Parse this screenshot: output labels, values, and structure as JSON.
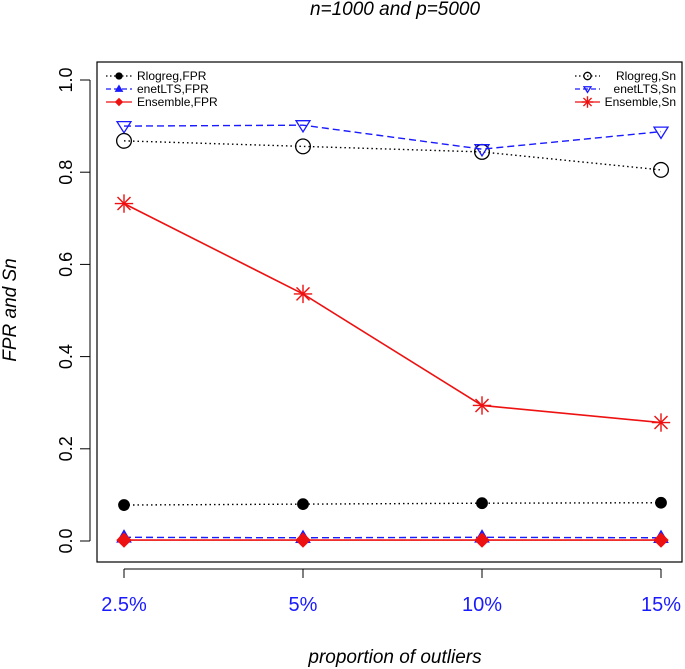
{
  "colors": {
    "black": "#000000",
    "blue": "#1a1aff",
    "red": "#ee1111",
    "xtick": "#1a1aff"
  },
  "chart_data": {
    "type": "line",
    "title": "n=1000 and p=5000",
    "xlabel": "proportion of outliers",
    "ylabel": "FPR and Sn",
    "categories": [
      "2.5%",
      "5%",
      "10%",
      "15%"
    ],
    "ylim": [
      0,
      1
    ],
    "yticks": [
      "0.0",
      "0.2",
      "0.4",
      "0.6",
      "0.8",
      "1.0"
    ],
    "grid": false,
    "series": [
      {
        "name": "Rlogreg,FPR",
        "color": "black",
        "style": "dotted",
        "marker": "filled-circle",
        "values": [
          0.078,
          0.08,
          0.082,
          0.083
        ]
      },
      {
        "name": "enetLTS,FPR",
        "color": "blue",
        "style": "dashed",
        "marker": "filled-triangle",
        "values": [
          0.008,
          0.007,
          0.008,
          0.007
        ]
      },
      {
        "name": "Ensemble,FPR",
        "color": "red",
        "style": "solid",
        "marker": "filled-diamond",
        "values": [
          0.002,
          0.002,
          0.002,
          0.002
        ]
      },
      {
        "name": "Rlogreg,Sn",
        "color": "black",
        "style": "dotted",
        "marker": "open-circle",
        "values": [
          0.868,
          0.856,
          0.844,
          0.805
        ]
      },
      {
        "name": "enetLTS,Sn",
        "color": "blue",
        "style": "dashed",
        "marker": "open-triangle-down",
        "values": [
          0.9,
          0.902,
          0.85,
          0.888
        ]
      },
      {
        "name": "Ensemble,Sn",
        "color": "red",
        "style": "solid",
        "marker": "asterisk",
        "values": [
          0.732,
          0.536,
          0.294,
          0.257
        ]
      }
    ],
    "legends": [
      {
        "position": "top-left",
        "entries": [
          "Rlogreg,FPR",
          "enetLTS,FPR",
          "Ensemble,FPR"
        ]
      },
      {
        "position": "top-right",
        "entries": [
          "Rlogreg,Sn",
          "enetLTS,Sn",
          "Ensemble,Sn"
        ]
      }
    ]
  }
}
